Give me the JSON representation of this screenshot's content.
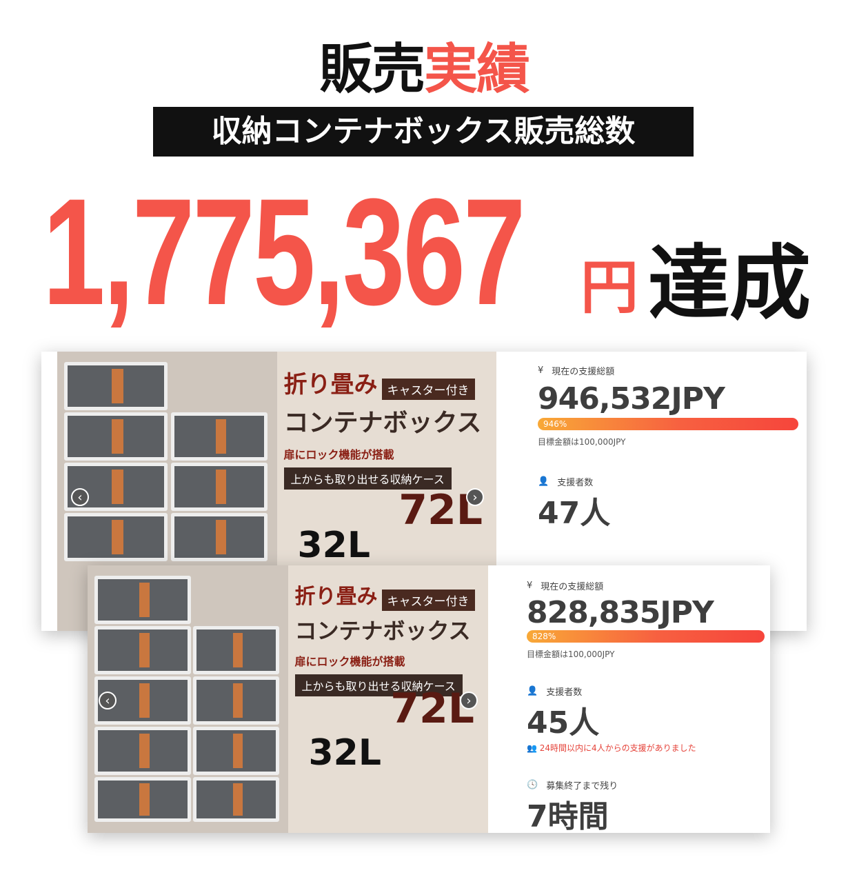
{
  "header": {
    "title_black": "販売",
    "title_red": "実績",
    "banner": "収納コンテナボックス販売総数"
  },
  "total": {
    "amount": "1,775,367",
    "currency": "円",
    "suffix": "達成"
  },
  "product_image": {
    "headline": "折り畳み",
    "tag": "キャスター付き",
    "name": "コンテナボックス",
    "feature1": "扉にロック機能が搭載",
    "feature2": "上からも取り出せる収納ケース",
    "size_large": "72L",
    "size_small": "32L"
  },
  "cards": [
    {
      "amount_label": "現在の支援総額",
      "amount": "946,532JPY",
      "percent_label": "946%",
      "progress_percent": 946,
      "goal": "目標金額は100,000JPY",
      "backers_label": "支援者数",
      "backers": "47人"
    },
    {
      "amount_label": "現在の支援総額",
      "amount": "828,835JPY",
      "percent_label": "828%",
      "progress_percent": 828,
      "goal": "目標金額は100,000JPY",
      "backers_label": "支援者数",
      "backers": "45人",
      "recent": "24時間以内に4人からの支援がありました",
      "remaining_label": "募集終了まで残り",
      "remaining": "7時間"
    }
  ],
  "colors": {
    "accent": "#f4554a",
    "bar_start": "#f8a937",
    "bar_end": "#f6453c"
  }
}
